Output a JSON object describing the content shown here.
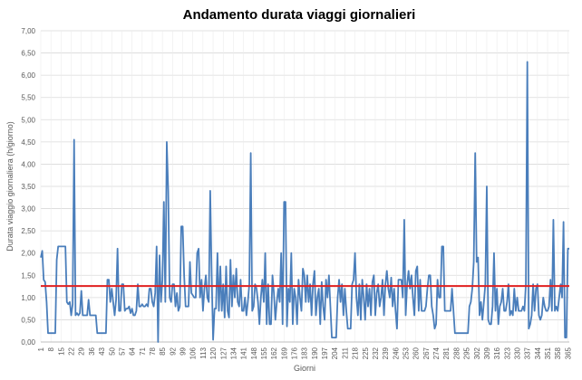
{
  "chart_data": {
    "type": "line",
    "title": "Andamento durata viaggi giornalieri",
    "x_label": "Giorni",
    "y_label": "Durata viaggio giornaliera (h/giorno)",
    "x": [
      1,
      2,
      3,
      4,
      5,
      6,
      7,
      8,
      9,
      10,
      11,
      12,
      13,
      14,
      15,
      16,
      17,
      18,
      19,
      20,
      21,
      22,
      23,
      24,
      25,
      26,
      27,
      28,
      29,
      30,
      31,
      32,
      33,
      34,
      35,
      36,
      37,
      38,
      39,
      40,
      41,
      42,
      43,
      44,
      45,
      46,
      47,
      48,
      49,
      50,
      51,
      52,
      53,
      54,
      55,
      56,
      57,
      58,
      59,
      60,
      61,
      62,
      63,
      64,
      65,
      66,
      67,
      68,
      69,
      70,
      71,
      72,
      73,
      74,
      75,
      76,
      77,
      78,
      79,
      80,
      81,
      82,
      83,
      84,
      85,
      86,
      87,
      88,
      89,
      90,
      91,
      92,
      93,
      94,
      95,
      96,
      97,
      98,
      99,
      100,
      101,
      102,
      103,
      104,
      105,
      106,
      107,
      108,
      109,
      110,
      111,
      112,
      113,
      114,
      115,
      116,
      117,
      118,
      119,
      120,
      121,
      122,
      123,
      124,
      125,
      126,
      127,
      128,
      129,
      130,
      131,
      132,
      133,
      134,
      135,
      136,
      137,
      138,
      139,
      140,
      141,
      142,
      143,
      144,
      145,
      146,
      147,
      148,
      149,
      150,
      151,
      152,
      153,
      154,
      155,
      156,
      157,
      158,
      159,
      160,
      161,
      162,
      163,
      164,
      165,
      166,
      167,
      168,
      169,
      170,
      171,
      172,
      173,
      174,
      175,
      176,
      177,
      178,
      179,
      180,
      181,
      182,
      183,
      184,
      185,
      186,
      187,
      188,
      189,
      190,
      191,
      192,
      193,
      194,
      195,
      196,
      197,
      198,
      199,
      200,
      201,
      202,
      203,
      204,
      205,
      206,
      207,
      208,
      209,
      210,
      211,
      212,
      213,
      214,
      215,
      216,
      217,
      218,
      219,
      220,
      221,
      222,
      223,
      224,
      225,
      226,
      227,
      228,
      229,
      230,
      231,
      232,
      233,
      234,
      235,
      236,
      237,
      238,
      239,
      240,
      241,
      242,
      243,
      244,
      245,
      246,
      247,
      248,
      249,
      250,
      251,
      252,
      253,
      254,
      255,
      256,
      257,
      258,
      259,
      260,
      261,
      262,
      263,
      264,
      265,
      266,
      267,
      268,
      269,
      270,
      271,
      272,
      273,
      274,
      275,
      276,
      277,
      278,
      279,
      280,
      281,
      282,
      283,
      284,
      285,
      286,
      287,
      288,
      289,
      290,
      291,
      292,
      293,
      294,
      295,
      296,
      297,
      298,
      299,
      300,
      301,
      302,
      303,
      304,
      305,
      306,
      307,
      308,
      309,
      310,
      311,
      312,
      313,
      314,
      315,
      316,
      317,
      318,
      319,
      320,
      321,
      322,
      323,
      324,
      325,
      326,
      327,
      328,
      329,
      330,
      331,
      332,
      333,
      334,
      335,
      336,
      337,
      338,
      339,
      340,
      341,
      342,
      343,
      344,
      345,
      346,
      347,
      348,
      349,
      350,
      351,
      352,
      353,
      354,
      355,
      356,
      357,
      358,
      359,
      360,
      361,
      362,
      363,
      364,
      365,
      366
    ],
    "series": [
      {
        "color": "#4a7ebb",
        "values": [
          1.9,
          2.05,
          1.4,
          1.35,
          0.9,
          0.2,
          0.2,
          0.2,
          0.2,
          0.2,
          0.2,
          1.85,
          2.15,
          2.15,
          2.15,
          2.15,
          2.15,
          2.15,
          0.9,
          0.85,
          0.9,
          0.6,
          0.85,
          4.55,
          0.6,
          0.65,
          0.6,
          0.65,
          1.15,
          0.6,
          0.6,
          0.6,
          0.6,
          0.95,
          0.6,
          0.6,
          0.6,
          0.6,
          0.6,
          0.2,
          0.2,
          0.2,
          0.2,
          0.2,
          0.2,
          0.2,
          1.4,
          1.4,
          0.9,
          1.2,
          0.9,
          0.6,
          0.95,
          2.1,
          0.7,
          0.7,
          1.3,
          1.3,
          0.7,
          0.75,
          0.75,
          0.8,
          0.65,
          0.75,
          0.6,
          0.6,
          0.7,
          1.3,
          0.8,
          0.8,
          0.85,
          0.8,
          0.8,
          0.85,
          0.8,
          1.2,
          1.2,
          0.9,
          0.8,
          1.1,
          2.15,
          0.0,
          1.95,
          0.9,
          1.4,
          3.15,
          0.9,
          4.5,
          3.4,
          1.0,
          0.9,
          1.3,
          1.3,
          0.8,
          1.1,
          0.7,
          0.8,
          2.6,
          2.6,
          1.5,
          0.8,
          0.8,
          0.8,
          1.8,
          1.1,
          1.05,
          1.0,
          1.0,
          2.0,
          2.1,
          1.0,
          1.4,
          0.7,
          1.2,
          1.5,
          1.0,
          0.9,
          3.4,
          1.5,
          0.05,
          0.75,
          0.75,
          2.0,
          0.7,
          1.7,
          0.7,
          1.3,
          0.55,
          1.7,
          0.7,
          0.55,
          1.85,
          0.8,
          1.5,
          1.0,
          1.65,
          0.9,
          0.8,
          1.4,
          0.7,
          0.7,
          1.0,
          0.6,
          0.9,
          1.3,
          4.25,
          0.7,
          0.8,
          1.3,
          1.2,
          0.9,
          0.4,
          1.0,
          1.4,
          0.9,
          2.0,
          0.4,
          1.3,
          0.4,
          0.4,
          1.5,
          1.1,
          0.5,
          0.9,
          1.2,
          0.9,
          2.0,
          0.4,
          3.15,
          3.15,
          0.35,
          1.2,
          0.9,
          2.0,
          0.4,
          1.2,
          1.0,
          0.4,
          1.4,
          1.0,
          0.7,
          1.65,
          1.5,
          0.9,
          1.5,
          0.9,
          1.3,
          0.6,
          1.3,
          1.6,
          0.6,
          1.0,
          1.2,
          0.4,
          1.35,
          0.8,
          0.5,
          1.4,
          1.0,
          1.5,
          0.8,
          0.1,
          0.1,
          0.1,
          0.1,
          1.0,
          1.4,
          0.9,
          1.3,
          0.6,
          1.2,
          0.7,
          0.3,
          0.3,
          0.3,
          1.3,
          1.4,
          2.0,
          1.0,
          0.6,
          1.3,
          0.5,
          1.4,
          1.0,
          0.5,
          1.3,
          0.8,
          1.2,
          0.6,
          1.35,
          1.5,
          0.6,
          1.1,
          1.3,
          0.8,
          1.0,
          1.4,
          0.6,
          1.3,
          1.6,
          1.2,
          1.0,
          1.45,
          0.8,
          1.2,
          0.7,
          0.3,
          1.4,
          1.4,
          1.4,
          1.0,
          2.75,
          0.6,
          1.3,
          1.6,
          1.2,
          1.5,
          1.0,
          0.6,
          1.6,
          1.7,
          0.7,
          1.4,
          0.7,
          0.7,
          0.7,
          0.8,
          1.2,
          1.5,
          1.5,
          0.8,
          0.6,
          0.3,
          0.4,
          1.4,
          1.0,
          1.0,
          2.15,
          2.15,
          0.7,
          0.7,
          0.7,
          0.7,
          0.7,
          1.2,
          0.7,
          0.2,
          0.2,
          0.2,
          0.2,
          0.2,
          0.2,
          0.2,
          0.2,
          0.2,
          0.2,
          0.8,
          0.9,
          1.2,
          1.8,
          4.25,
          1.8,
          1.9,
          0.6,
          0.9,
          0.5,
          0.9,
          1.3,
          3.5,
          0.5,
          0.4,
          0.4,
          0.8,
          2.0,
          0.7,
          1.2,
          0.4,
          0.8,
          0.9,
          1.2,
          0.7,
          0.7,
          0.9,
          1.3,
          0.6,
          0.7,
          0.6,
          1.2,
          0.7,
          1.0,
          0.7,
          0.7,
          0.7,
          0.8,
          0.7,
          1.3,
          6.3,
          0.3,
          0.4,
          0.6,
          1.3,
          0.7,
          1.2,
          1.3,
          0.6,
          0.5,
          0.6,
          1.0,
          0.8,
          0.7,
          0.7,
          0.8,
          1.4,
          0.7,
          2.75,
          0.7,
          0.8,
          0.7,
          1.0,
          1.3,
          1.0,
          2.7,
          0.1,
          0.1,
          2.1,
          2.1
        ]
      }
    ],
    "mean_line": {
      "value": 1.26,
      "color": "#e02020"
    },
    "xlim": [
      1,
      366
    ],
    "xticks": [
      1,
      8,
      15,
      22,
      29,
      36,
      43,
      50,
      57,
      64,
      71,
      78,
      85,
      92,
      99,
      106,
      113,
      120,
      127,
      134,
      141,
      148,
      155,
      162,
      169,
      176,
      183,
      190,
      197,
      204,
      211,
      218,
      225,
      232,
      239,
      246,
      253,
      260,
      267,
      274,
      281,
      288,
      295,
      302,
      309,
      316,
      323,
      330,
      337,
      344,
      351,
      358,
      365
    ],
    "ylim": [
      0,
      7
    ],
    "yticks": [
      {
        "value": 0,
        "label": "0,00"
      },
      {
        "value": 0.5,
        "label": "0,50"
      },
      {
        "value": 1,
        "label": "1,00"
      },
      {
        "value": 1.5,
        "label": "1,50"
      },
      {
        "value": 2,
        "label": "2,00"
      },
      {
        "value": 2.5,
        "label": "2,50"
      },
      {
        "value": 3,
        "label": "3,00"
      },
      {
        "value": 3.5,
        "label": "3,50"
      },
      {
        "value": 4,
        "label": "4,00"
      },
      {
        "value": 4.5,
        "label": "4,50"
      },
      {
        "value": 5,
        "label": "5,00"
      },
      {
        "value": 5.5,
        "label": "5,50"
      },
      {
        "value": 6,
        "label": "6,00"
      },
      {
        "value": 6.5,
        "label": "6,50"
      },
      {
        "value": 7,
        "label": "7,00"
      }
    ],
    "grid": true
  }
}
